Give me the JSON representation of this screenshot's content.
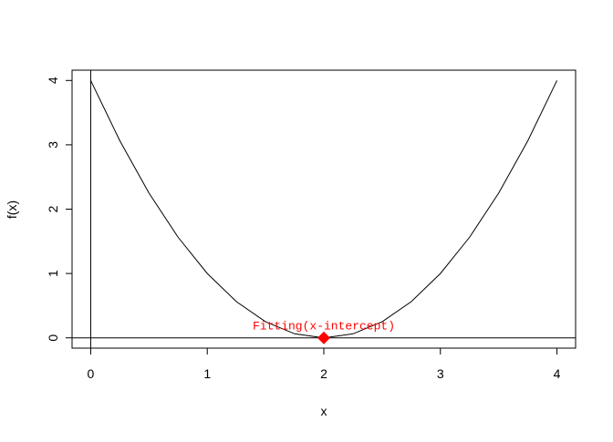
{
  "chart_data": {
    "type": "line",
    "xlabel": "x",
    "ylabel": "f(x)",
    "series": [
      {
        "color": "#000000",
        "x": [
          0,
          0.25,
          0.5,
          0.75,
          1,
          1.25,
          1.5,
          1.75,
          2,
          2.25,
          2.5,
          2.75,
          3,
          3.25,
          3.5,
          3.75,
          4
        ],
        "values": [
          4,
          3.0625,
          2.25,
          1.5625,
          1,
          0.5625,
          0.25,
          0.0625,
          0,
          0.0625,
          0.25,
          0.5625,
          1,
          1.5625,
          2.25,
          3.0625,
          4
        ]
      }
    ],
    "points": {
      "x": [
        2
      ],
      "values": [
        0
      ],
      "color": "#ff0000"
    },
    "annotation": "Fitting(x-intercept)",
    "hline": 0,
    "vline": 0,
    "xlim": [
      -0.16,
      4.16
    ],
    "ylim": [
      -0.16,
      4.16
    ],
    "xticks": [
      0,
      1,
      2,
      3,
      4
    ],
    "yticks": [
      0,
      1,
      2,
      3,
      4
    ]
  }
}
